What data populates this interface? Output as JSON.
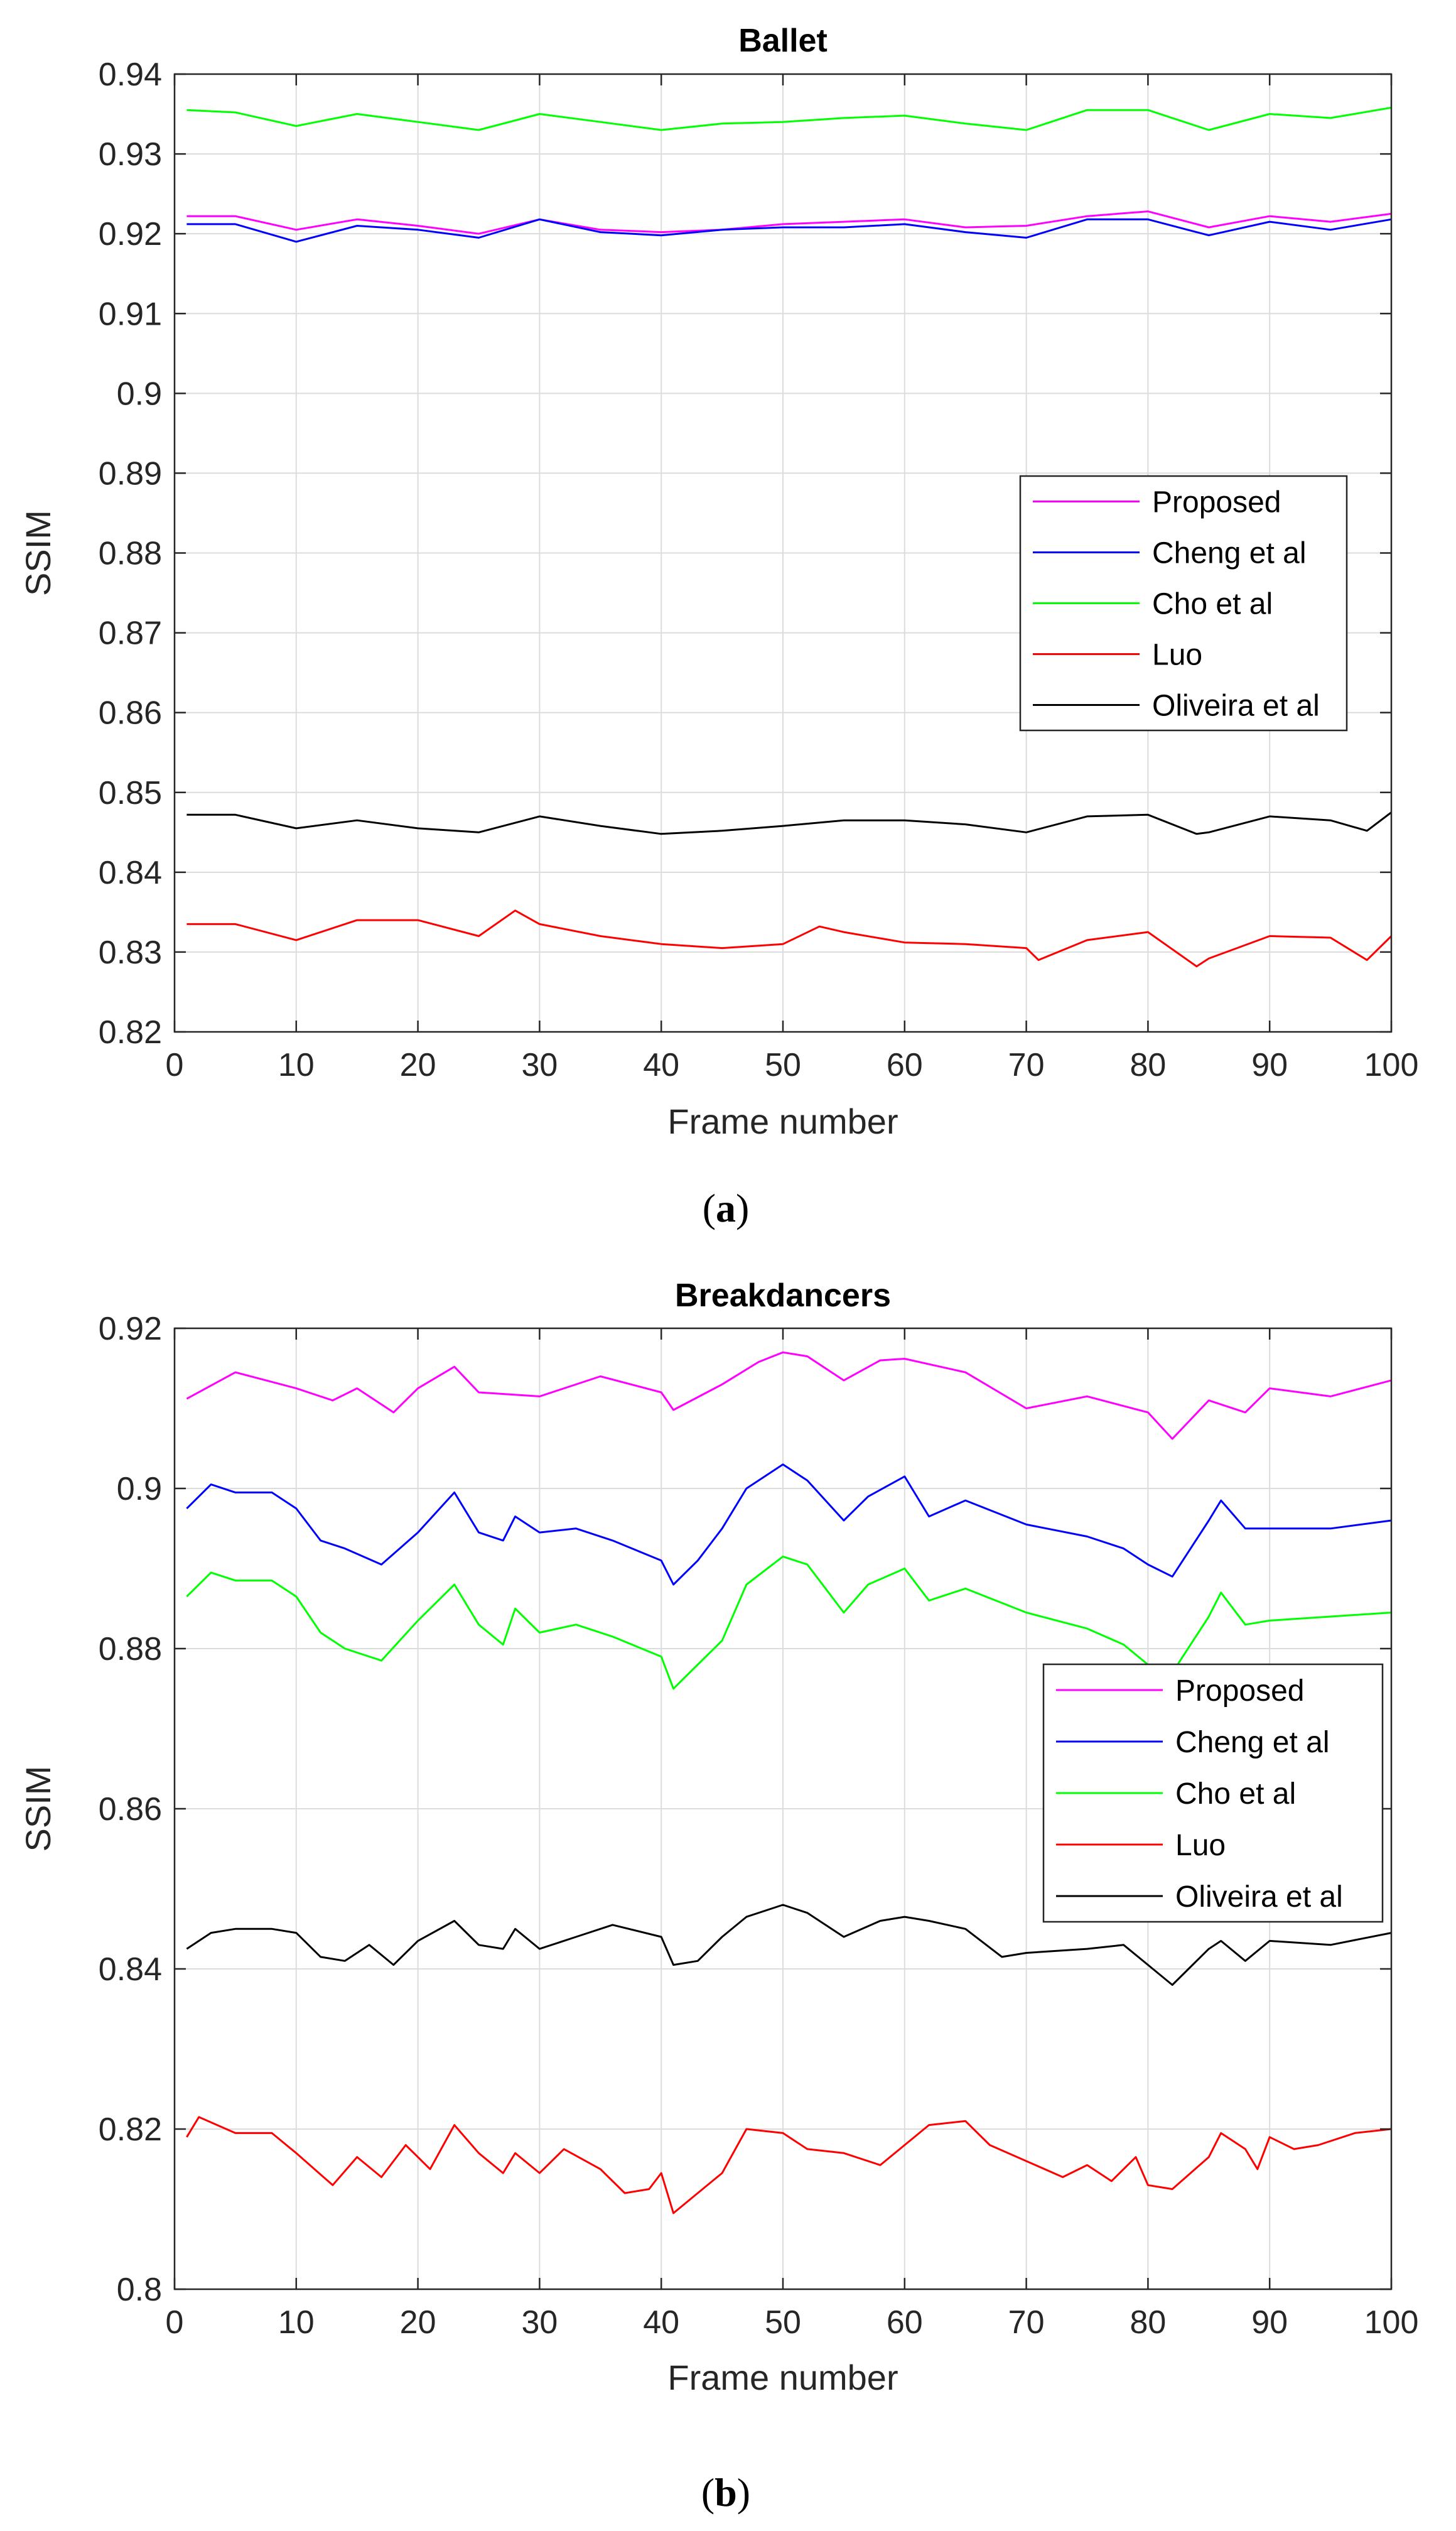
{
  "colors": {
    "proposed": "#ff00ff",
    "cheng": "#0000ff",
    "cho": "#00ff00",
    "luo": "#ff0000",
    "oliveira": "#000000",
    "grid": "#dcdcdc",
    "axis": "#262626"
  },
  "panels": [
    {
      "prefix": "(",
      "letter": "a",
      "suffix": ")"
    },
    {
      "prefix": "(",
      "letter": "b",
      "suffix": ")"
    }
  ],
  "chart_data": [
    {
      "type": "line",
      "title": "Ballet",
      "xlabel": "Frame number",
      "ylabel": "SSIM",
      "xlim": [
        0,
        100
      ],
      "ylim": [
        0.82,
        0.94
      ],
      "grid": true,
      "legend_position": "right",
      "xticks": [
        0,
        10,
        20,
        30,
        40,
        50,
        60,
        70,
        80,
        90,
        100
      ],
      "xtick_labels": [
        "0",
        "10",
        "20",
        "30",
        "40",
        "50",
        "60",
        "70",
        "80",
        "90",
        "100"
      ],
      "yticks": [
        0.82,
        0.83,
        0.84,
        0.85,
        0.86,
        0.87,
        0.88,
        0.89,
        0.9,
        0.91,
        0.92,
        0.93,
        0.94
      ],
      "ytick_labels": [
        "0.82",
        "0.83",
        "0.84",
        "0.85",
        "0.86",
        "0.87",
        "0.88",
        "0.89",
        "0.9",
        "0.91",
        "0.92",
        "0.93",
        "0.94"
      ],
      "series": [
        {
          "name": "Proposed",
          "color": "#ff00ff",
          "x": [
            1,
            5,
            10,
            15,
            20,
            25,
            30,
            35,
            40,
            45,
            50,
            55,
            60,
            65,
            70,
            75,
            80,
            85,
            90,
            95,
            100
          ],
          "values": [
            0.9222,
            0.9222,
            0.9205,
            0.9218,
            0.921,
            0.92,
            0.9218,
            0.9205,
            0.9202,
            0.9205,
            0.9212,
            0.9215,
            0.9218,
            0.9208,
            0.921,
            0.9222,
            0.9228,
            0.9208,
            0.9222,
            0.9215,
            0.9225
          ]
        },
        {
          "name": "Cheng et al",
          "color": "#0000ff",
          "x": [
            1,
            5,
            10,
            15,
            20,
            25,
            30,
            35,
            40,
            45,
            50,
            55,
            60,
            65,
            70,
            75,
            80,
            85,
            90,
            95,
            100
          ],
          "values": [
            0.9212,
            0.9212,
            0.919,
            0.921,
            0.9205,
            0.9195,
            0.9218,
            0.9202,
            0.9198,
            0.9205,
            0.9208,
            0.9208,
            0.9212,
            0.9202,
            0.9195,
            0.9218,
            0.9218,
            0.9198,
            0.9215,
            0.9205,
            0.9218
          ]
        },
        {
          "name": "Cho et al",
          "color": "#00ff00",
          "x": [
            1,
            5,
            10,
            15,
            20,
            25,
            30,
            35,
            40,
            45,
            50,
            55,
            60,
            65,
            70,
            75,
            80,
            85,
            90,
            95,
            100
          ],
          "values": [
            0.9355,
            0.9352,
            0.9335,
            0.935,
            0.934,
            0.933,
            0.935,
            0.934,
            0.933,
            0.9338,
            0.934,
            0.9345,
            0.9348,
            0.9338,
            0.933,
            0.9355,
            0.9355,
            0.933,
            0.935,
            0.9345,
            0.9358
          ]
        },
        {
          "name": "Luo",
          "color": "#ff0000",
          "x": [
            1,
            5,
            10,
            15,
            20,
            25,
            28,
            30,
            35,
            40,
            45,
            50,
            53,
            55,
            60,
            65,
            70,
            71,
            75,
            80,
            84,
            85,
            90,
            95,
            98,
            100
          ],
          "values": [
            0.8335,
            0.8335,
            0.8315,
            0.834,
            0.834,
            0.832,
            0.8352,
            0.8335,
            0.832,
            0.831,
            0.8305,
            0.831,
            0.8332,
            0.8325,
            0.8312,
            0.831,
            0.8305,
            0.829,
            0.8315,
            0.8325,
            0.8282,
            0.8292,
            0.832,
            0.8318,
            0.829,
            0.832
          ]
        },
        {
          "name": "Oliveira et al",
          "color": "#000000",
          "x": [
            1,
            5,
            10,
            15,
            20,
            25,
            30,
            35,
            40,
            45,
            50,
            55,
            60,
            65,
            70,
            75,
            80,
            84,
            85,
            90,
            95,
            98,
            100
          ],
          "values": [
            0.8472,
            0.8472,
            0.8455,
            0.8465,
            0.8455,
            0.845,
            0.847,
            0.8458,
            0.8448,
            0.8452,
            0.8458,
            0.8465,
            0.8465,
            0.846,
            0.845,
            0.847,
            0.8472,
            0.8448,
            0.845,
            0.847,
            0.8465,
            0.8452,
            0.8475
          ]
        }
      ]
    },
    {
      "type": "line",
      "title": "Breakdancers",
      "xlabel": "Frame number",
      "ylabel": "SSIM",
      "xlim": [
        0,
        100
      ],
      "ylim": [
        0.8,
        0.92
      ],
      "grid": true,
      "legend_position": "right",
      "xticks": [
        0,
        10,
        20,
        30,
        40,
        50,
        60,
        70,
        80,
        90,
        100
      ],
      "xtick_labels": [
        "0",
        "10",
        "20",
        "30",
        "40",
        "50",
        "60",
        "70",
        "80",
        "90",
        "100"
      ],
      "yticks": [
        0.8,
        0.82,
        0.84,
        0.86,
        0.88,
        0.9,
        0.92
      ],
      "ytick_labels": [
        "0.8",
        "0.82",
        "0.84",
        "0.86",
        "0.88",
        "0.9",
        "0.92"
      ],
      "series": [
        {
          "name": "Proposed",
          "color": "#ff00ff",
          "x": [
            1,
            5,
            10,
            13,
            15,
            18,
            20,
            23,
            25,
            30,
            35,
            40,
            41,
            45,
            48,
            50,
            52,
            55,
            58,
            60,
            65,
            70,
            75,
            80,
            82,
            85,
            88,
            90,
            95,
            100
          ],
          "values": [
            0.9112,
            0.9145,
            0.9125,
            0.911,
            0.9125,
            0.9095,
            0.9125,
            0.9152,
            0.912,
            0.9115,
            0.914,
            0.912,
            0.9098,
            0.913,
            0.9158,
            0.917,
            0.9165,
            0.9135,
            0.916,
            0.9162,
            0.9145,
            0.91,
            0.9115,
            0.9095,
            0.9062,
            0.911,
            0.9095,
            0.9125,
            0.9115,
            0.9135
          ]
        },
        {
          "name": "Cheng et al",
          "color": "#0000ff",
          "x": [
            1,
            3,
            5,
            8,
            10,
            12,
            14,
            17,
            20,
            23,
            25,
            27,
            28,
            30,
            33,
            36,
            40,
            41,
            43,
            45,
            47,
            50,
            52,
            55,
            57,
            60,
            62,
            65,
            70,
            75,
            78,
            80,
            82,
            85,
            86,
            88,
            90,
            95,
            100
          ],
          "values": [
            0.8975,
            0.9005,
            0.8995,
            0.8995,
            0.8975,
            0.8935,
            0.8925,
            0.8905,
            0.8945,
            0.8995,
            0.8945,
            0.8935,
            0.8965,
            0.8945,
            0.895,
            0.8935,
            0.891,
            0.888,
            0.891,
            0.895,
            0.9,
            0.903,
            0.901,
            0.896,
            0.899,
            0.9015,
            0.8965,
            0.8985,
            0.8955,
            0.894,
            0.8925,
            0.8905,
            0.889,
            0.896,
            0.8985,
            0.895,
            0.895,
            0.895,
            0.896
          ]
        },
        {
          "name": "Cho et al",
          "color": "#00ff00",
          "x": [
            1,
            3,
            5,
            8,
            10,
            12,
            14,
            17,
            20,
            23,
            25,
            27,
            28,
            30,
            33,
            36,
            40,
            41,
            43,
            45,
            47,
            50,
            52,
            55,
            57,
            60,
            62,
            65,
            70,
            75,
            78,
            80,
            82,
            85,
            86,
            88,
            90,
            95,
            100
          ],
          "values": [
            0.8865,
            0.8895,
            0.8885,
            0.8885,
            0.8865,
            0.882,
            0.88,
            0.8785,
            0.8835,
            0.888,
            0.883,
            0.8805,
            0.885,
            0.882,
            0.883,
            0.8815,
            0.879,
            0.875,
            0.878,
            0.881,
            0.888,
            0.8915,
            0.8905,
            0.8845,
            0.888,
            0.89,
            0.886,
            0.8875,
            0.8845,
            0.8825,
            0.8805,
            0.878,
            0.877,
            0.884,
            0.887,
            0.883,
            0.8835,
            0.884,
            0.8845
          ]
        },
        {
          "name": "Luo",
          "color": "#ff0000",
          "x": [
            1,
            2,
            5,
            8,
            10,
            13,
            15,
            17,
            19,
            21,
            23,
            25,
            27,
            28,
            30,
            32,
            35,
            37,
            39,
            40,
            41,
            43,
            45,
            47,
            50,
            52,
            55,
            58,
            60,
            62,
            65,
            67,
            70,
            73,
            75,
            77,
            79,
            80,
            82,
            85,
            86,
            88,
            89,
            90,
            92,
            94,
            97,
            100
          ],
          "values": [
            0.819,
            0.8215,
            0.8195,
            0.8195,
            0.817,
            0.813,
            0.8165,
            0.814,
            0.818,
            0.815,
            0.8205,
            0.817,
            0.8145,
            0.817,
            0.8145,
            0.8175,
            0.815,
            0.812,
            0.8125,
            0.8145,
            0.8095,
            0.812,
            0.8145,
            0.82,
            0.8195,
            0.8175,
            0.817,
            0.8155,
            0.818,
            0.8205,
            0.821,
            0.818,
            0.816,
            0.814,
            0.8155,
            0.8135,
            0.8165,
            0.813,
            0.8125,
            0.8165,
            0.8195,
            0.8175,
            0.815,
            0.819,
            0.8175,
            0.818,
            0.8195,
            0.82
          ]
        },
        {
          "name": "Oliveira et al",
          "color": "#000000",
          "x": [
            1,
            3,
            5,
            8,
            10,
            12,
            14,
            16,
            18,
            20,
            23,
            25,
            27,
            28,
            30,
            33,
            36,
            40,
            41,
            43,
            45,
            47,
            50,
            52,
            55,
            58,
            60,
            62,
            65,
            68,
            70,
            75,
            78,
            80,
            82,
            85,
            86,
            88,
            90,
            95,
            100
          ],
          "values": [
            0.8425,
            0.8445,
            0.845,
            0.845,
            0.8445,
            0.8415,
            0.841,
            0.843,
            0.8405,
            0.8435,
            0.846,
            0.843,
            0.8425,
            0.845,
            0.8425,
            0.844,
            0.8455,
            0.844,
            0.8405,
            0.841,
            0.844,
            0.8465,
            0.848,
            0.847,
            0.844,
            0.846,
            0.8465,
            0.846,
            0.845,
            0.8415,
            0.842,
            0.8425,
            0.843,
            0.8405,
            0.838,
            0.8425,
            0.8435,
            0.841,
            0.8435,
            0.843,
            0.8445
          ]
        }
      ]
    }
  ]
}
